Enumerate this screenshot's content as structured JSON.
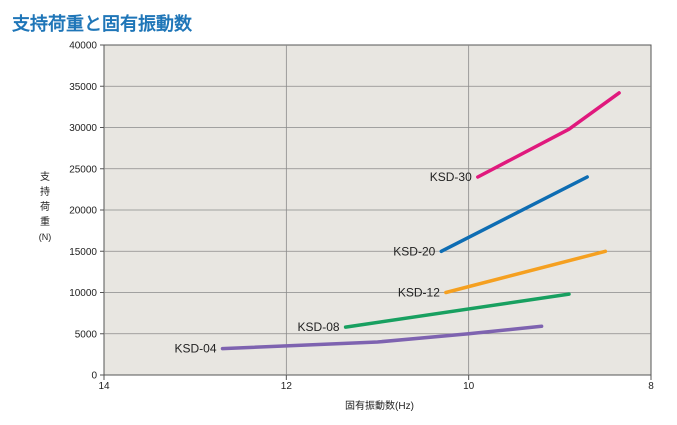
{
  "title": "支持荷重と固有振動数",
  "chart_data": {
    "type": "line",
    "title": "支持荷重と固有振動数",
    "xlabel": "固有振動数(Hz)",
    "ylabel_chars": [
      "支",
      "持",
      "荷",
      "重"
    ],
    "ylabel_unit": "(N)",
    "xlim": [
      14,
      8
    ],
    "ylim": [
      0,
      40000
    ],
    "xticks": [
      14,
      12,
      10,
      8
    ],
    "yticks": [
      0,
      5000,
      10000,
      15000,
      20000,
      25000,
      30000,
      35000,
      40000
    ],
    "grid": true,
    "series": [
      {
        "name": "KSD-30",
        "color": "#e0197d",
        "x": [
          9.9,
          8.9,
          8.35
        ],
        "y": [
          24000,
          29800,
          34200
        ]
      },
      {
        "name": "KSD-20",
        "color": "#0e6db3",
        "x": [
          10.3,
          8.7
        ],
        "y": [
          15000,
          24000
        ]
      },
      {
        "name": "KSD-12",
        "color": "#f5a020",
        "x": [
          10.25,
          8.5
        ],
        "y": [
          10000,
          15000
        ]
      },
      {
        "name": "KSD-08",
        "color": "#18a060",
        "x": [
          11.35,
          8.9
        ],
        "y": [
          5800,
          9800
        ]
      },
      {
        "name": "KSD-04",
        "color": "#7e63b0",
        "x": [
          12.7,
          11.0,
          10.0,
          9.2
        ],
        "y": [
          3200,
          4000,
          5000,
          5900
        ]
      }
    ]
  }
}
